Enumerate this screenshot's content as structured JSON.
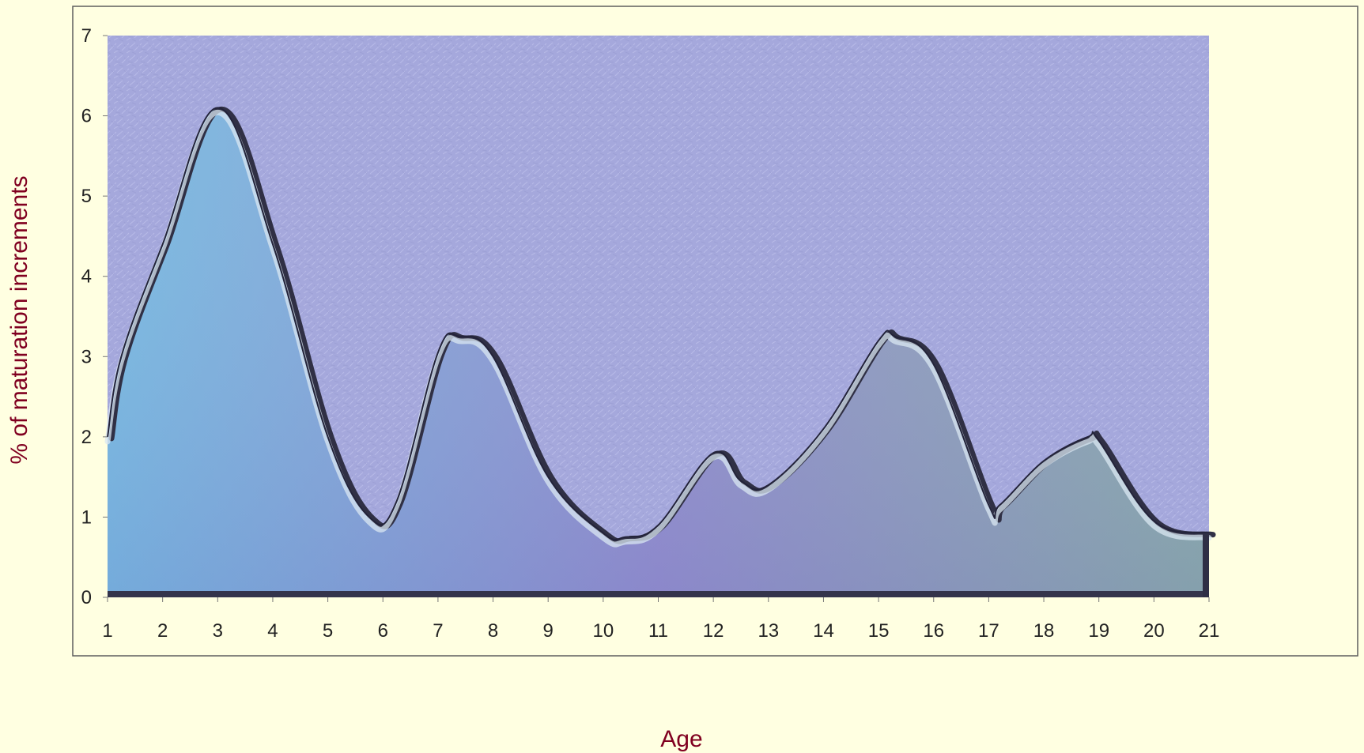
{
  "chart_data": {
    "type": "area",
    "title": "",
    "xlabel": "Age",
    "ylabel": "% of maturation increments",
    "x": [
      1,
      1.25,
      2,
      3,
      4,
      5,
      5.75,
      6.25,
      7,
      7.4,
      8,
      9,
      10,
      10.4,
      11,
      12,
      12.5,
      13,
      14,
      15,
      15.3,
      16,
      17,
      17.2,
      18,
      18.8,
      19,
      20,
      21
    ],
    "values": [
      2.0,
      3.0,
      4.4,
      6.1,
      4.4,
      2.0,
      1.0,
      1.2,
      3.05,
      3.25,
      3.0,
      1.5,
      0.8,
      0.75,
      0.9,
      1.8,
      1.45,
      1.4,
      2.1,
      3.2,
      3.25,
      2.9,
      1.15,
      1.15,
      1.7,
      2.0,
      1.95,
      0.95,
      0.8
    ],
    "xlim": [
      1,
      21
    ],
    "ylim": [
      0,
      7
    ],
    "xticks": [
      "1",
      "2",
      "3",
      "4",
      "5",
      "6",
      "7",
      "8",
      "9",
      "10",
      "11",
      "12",
      "13",
      "14",
      "15",
      "16",
      "17",
      "18",
      "19",
      "20",
      "21"
    ],
    "yticks": [
      "0",
      "1",
      "2",
      "3",
      "4",
      "5",
      "6",
      "7"
    ],
    "grid": false,
    "legend": "none"
  },
  "colors": {
    "page_background": "#ffffe1",
    "plot_background": "#a3a6d9",
    "area_fill_left": "#76b6dc",
    "area_fill_middle": "#8f8fc9",
    "area_fill_right": "#8ba8a8",
    "outline": "#2b2b45",
    "axis_title": "#800020"
  }
}
